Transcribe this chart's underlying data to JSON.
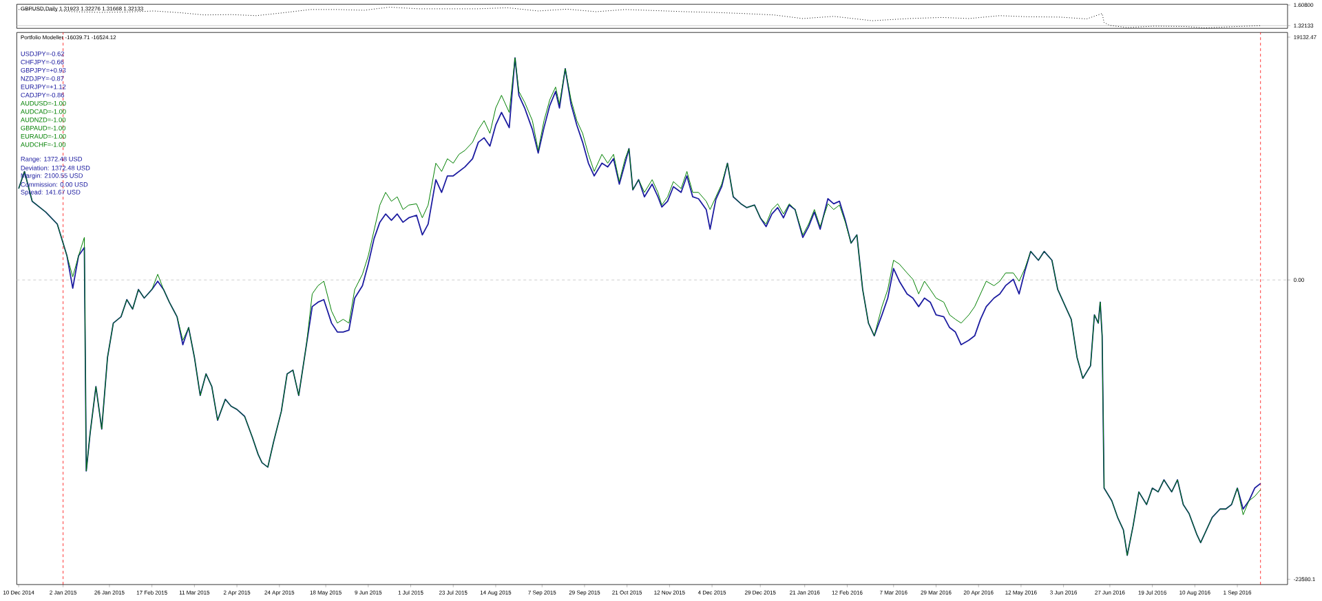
{
  "chart_data": [
    {
      "type": "line",
      "title": "GBPUSD,Daily  1.31923 1.32276 1.31668 1.32133",
      "xlim": [
        "2014-12-09",
        "2016-09-27"
      ],
      "ylim": [
        1.284,
        1.618
      ],
      "yticks": [
        {
          "value": 1.608,
          "label": "1.60800"
        },
        {
          "value": 1.32133,
          "label": "1.32133"
        }
      ],
      "tick_labels": "y",
      "line_style": "dotted",
      "x": [
        "2014-12-10",
        "2014-12-24",
        "2015-01-07",
        "2015-01-21",
        "2015-02-04",
        "2015-02-18",
        "2015-03-04",
        "2015-03-16",
        "2015-03-30",
        "2015-04-12",
        "2015-04-26",
        "2015-05-10",
        "2015-05-24",
        "2015-06-07",
        "2015-06-20",
        "2015-07-05",
        "2015-07-20",
        "2015-08-05",
        "2015-08-20",
        "2015-09-05",
        "2015-09-20",
        "2015-10-05",
        "2015-10-20",
        "2015-11-05",
        "2015-11-20",
        "2015-12-05",
        "2015-12-20",
        "2016-01-05",
        "2016-01-20",
        "2016-02-05",
        "2016-02-25",
        "2016-03-15",
        "2016-04-01",
        "2016-04-15",
        "2016-05-01",
        "2016-05-15",
        "2016-06-01",
        "2016-06-15",
        "2016-06-23",
        "2016-06-24",
        "2016-06-27",
        "2016-07-06",
        "2016-07-20",
        "2016-08-05",
        "2016-08-15",
        "2016-09-01",
        "2016-09-13"
      ],
      "series": [
        {
          "color": "#000000",
          "values": [
            1.545,
            1.535,
            1.515,
            1.505,
            1.51,
            1.525,
            1.5,
            1.47,
            1.475,
            1.46,
            1.5,
            1.545,
            1.545,
            1.535,
            1.578,
            1.555,
            1.555,
            1.555,
            1.57,
            1.525,
            1.55,
            1.515,
            1.545,
            1.53,
            1.515,
            1.505,
            1.49,
            1.47,
            1.42,
            1.45,
            1.39,
            1.42,
            1.435,
            1.42,
            1.46,
            1.445,
            1.44,
            1.415,
            1.49,
            1.365,
            1.325,
            1.295,
            1.315,
            1.31,
            1.29,
            1.31,
            1.32133
          ]
        }
      ],
      "ref_lines": [
        {
          "axis": "y",
          "value": 1.32133,
          "color": "#c0c0c0",
          "line_style": "solid"
        }
      ]
    },
    {
      "type": "line",
      "title": "Portfolio Modeller -16039.71 -16524.12",
      "xlim": [
        "2014-12-09",
        "2016-09-27"
      ],
      "ylim": [
        -24000,
        19500
      ],
      "yticks": [
        19132.47,
        {
          "value": 0,
          "label": "0.00"
        },
        -23580.1
      ],
      "xticks": [
        {
          "value": "2014-12-10",
          "label": "10 Dec 2014"
        },
        {
          "value": "2015-01-02",
          "label": "2 Jan 2015"
        },
        {
          "value": "2015-01-26",
          "label": "26 Jan 2015"
        },
        {
          "value": "2015-02-17",
          "label": "17 Feb 2015"
        },
        {
          "value": "2015-03-11",
          "label": "11 Mar 2015"
        },
        {
          "value": "2015-04-02",
          "label": "2 Apr 2015"
        },
        {
          "value": "2015-04-24",
          "label": "24 Apr 2015"
        },
        {
          "value": "2015-05-18",
          "label": "18 May 2015"
        },
        {
          "value": "2015-06-09",
          "label": "9 Jun 2015"
        },
        {
          "value": "2015-07-01",
          "label": "1 Jul 2015"
        },
        {
          "value": "2015-07-23",
          "label": "23 Jul 2015"
        },
        {
          "value": "2015-08-14",
          "label": "14 Aug 2015"
        },
        {
          "value": "2015-09-07",
          "label": "7 Sep 2015"
        },
        {
          "value": "2015-09-29",
          "label": "29 Sep 2015"
        },
        {
          "value": "2015-10-21",
          "label": "21 Oct 2015"
        },
        {
          "value": "2015-11-12",
          "label": "12 Nov 2015"
        },
        {
          "value": "2015-12-04",
          "label": "4 Dec 2015"
        },
        {
          "value": "2015-12-29",
          "label": "29 Dec 2015"
        },
        {
          "value": "2016-01-21",
          "label": "21 Jan 2016"
        },
        {
          "value": "2016-02-12",
          "label": "12 Feb 2016"
        },
        {
          "value": "2016-03-07",
          "label": "7 Mar 2016"
        },
        {
          "value": "2016-03-29",
          "label": "29 Mar 2016"
        },
        {
          "value": "2016-04-20",
          "label": "20 Apr 2016"
        },
        {
          "value": "2016-05-12",
          "label": "12 May 2016"
        },
        {
          "value": "2016-06-03",
          "label": "3 Jun 2016"
        },
        {
          "value": "2016-06-27",
          "label": "27 Jun 2016"
        },
        {
          "value": "2016-07-19",
          "label": "19 Jul 2016"
        },
        {
          "value": "2016-08-10",
          "label": "10 Aug 2016"
        },
        {
          "value": "2016-09-01",
          "label": "1 Sep 2016"
        }
      ],
      "annotations": [
        "USDJPY=-0.62",
        "CHFJPY=-0.66",
        "GBPJPY=+0.93",
        "NZDJPY=-0.87",
        "EURJPY=+1.12",
        "CADJPY=-0.86",
        "AUDUSD=-1.00",
        "AUDCAD=-1.00",
        "AUDNZD=-1.00",
        "GBPAUD=-1.00",
        "EURAUD=-1.00",
        "AUDCHF=-1.00",
        "Range: 1372.48 USD",
        "Deviation: 1372.48 USD",
        "Margin: 2100.55 USD",
        "Commission: 0.00 USD",
        "Spread: 141.67 USD"
      ],
      "ref_lines": [
        {
          "axis": "y",
          "value": 0,
          "color": "#c0c0c0",
          "line_style": "dashed"
        },
        {
          "axis": "x",
          "value": "2015-01-02",
          "color": "#ff0000",
          "line_style": "dashed"
        },
        {
          "axis": "x",
          "value": "2016-09-13",
          "color": "#ff0000",
          "line_style": "dashed"
        }
      ],
      "x": [
        "2014-12-10",
        "2014-12-13",
        "2014-12-17",
        "2014-12-24",
        "2014-12-30",
        "2015-01-04",
        "2015-01-07",
        "2015-01-10",
        "2015-01-13",
        "2015-01-14",
        "2015-01-16",
        "2015-01-19",
        "2015-01-22",
        "2015-01-25",
        "2015-01-28",
        "2015-02-01",
        "2015-02-04",
        "2015-02-07",
        "2015-02-10",
        "2015-02-13",
        "2015-02-17",
        "2015-02-20",
        "2015-02-23",
        "2015-02-26",
        "2015-03-02",
        "2015-03-05",
        "2015-03-08",
        "2015-03-11",
        "2015-03-14",
        "2015-03-17",
        "2015-03-20",
        "2015-03-23",
        "2015-03-27",
        "2015-03-30",
        "2015-04-02",
        "2015-04-06",
        "2015-04-10",
        "2015-04-13",
        "2015-04-15",
        "2015-04-18",
        "2015-04-21",
        "2015-04-25",
        "2015-04-28",
        "2015-05-01",
        "2015-05-04",
        "2015-05-08",
        "2015-05-11",
        "2015-05-14",
        "2015-05-17",
        "2015-05-21",
        "2015-05-24",
        "2015-05-27",
        "2015-05-30",
        "2015-06-02",
        "2015-06-06",
        "2015-06-09",
        "2015-06-12",
        "2015-06-15",
        "2015-06-18",
        "2015-06-21",
        "2015-06-24",
        "2015-06-27",
        "2015-06-30",
        "2015-07-04",
        "2015-07-07",
        "2015-07-10",
        "2015-07-14",
        "2015-07-17",
        "2015-07-20",
        "2015-07-23",
        "2015-07-26",
        "2015-07-29",
        "2015-08-02",
        "2015-08-05",
        "2015-08-08",
        "2015-08-11",
        "2015-08-14",
        "2015-08-17",
        "2015-08-21",
        "2015-08-24",
        "2015-08-26",
        "2015-08-29",
        "2015-09-02",
        "2015-09-05",
        "2015-09-08",
        "2015-09-11",
        "2015-09-14",
        "2015-09-16",
        "2015-09-19",
        "2015-09-22",
        "2015-09-25",
        "2015-09-28",
        "2015-10-01",
        "2015-10-04",
        "2015-10-08",
        "2015-10-11",
        "2015-10-14",
        "2015-10-17",
        "2015-10-20",
        "2015-10-22",
        "2015-10-24",
        "2015-10-27",
        "2015-10-30",
        "2015-11-03",
        "2015-11-06",
        "2015-11-08",
        "2015-11-11",
        "2015-11-14",
        "2015-11-18",
        "2015-11-21",
        "2015-11-24",
        "2015-11-27",
        "2015-12-01",
        "2015-12-03",
        "2015-12-06",
        "2015-12-09",
        "2015-12-12",
        "2015-12-15",
        "2015-12-19",
        "2015-12-22",
        "2015-12-26",
        "2015-12-29",
        "2016-01-01",
        "2016-01-04",
        "2016-01-07",
        "2016-01-10",
        "2016-01-13",
        "2016-01-16",
        "2016-01-20",
        "2016-01-23",
        "2016-01-26",
        "2016-01-29",
        "2016-02-02",
        "2016-02-05",
        "2016-02-08",
        "2016-02-11",
        "2016-02-14",
        "2016-02-17",
        "2016-02-20",
        "2016-02-23",
        "2016-02-26",
        "2016-03-01",
        "2016-03-04",
        "2016-03-07",
        "2016-03-10",
        "2016-03-14",
        "2016-03-17",
        "2016-03-20",
        "2016-03-23",
        "2016-03-26",
        "2016-03-29",
        "2016-04-02",
        "2016-04-05",
        "2016-04-08",
        "2016-04-11",
        "2016-04-15",
        "2016-04-18",
        "2016-04-21",
        "2016-04-24",
        "2016-04-28",
        "2016-05-01",
        "2016-05-04",
        "2016-05-08",
        "2016-05-11",
        "2016-05-14",
        "2016-05-17",
        "2016-05-21",
        "2016-05-24",
        "2016-05-28",
        "2016-05-31",
        "2016-06-04",
        "2016-06-07",
        "2016-06-10",
        "2016-06-13",
        "2016-06-17",
        "2016-06-19",
        "2016-06-21",
        "2016-06-22",
        "2016-06-23",
        "2016-06-24",
        "2016-06-28",
        "2016-07-01",
        "2016-07-04",
        "2016-07-06",
        "2016-07-09",
        "2016-07-12",
        "2016-07-16",
        "2016-07-19",
        "2016-07-22",
        "2016-07-25",
        "2016-07-29",
        "2016-08-01",
        "2016-08-04",
        "2016-08-07",
        "2016-08-11",
        "2016-08-13",
        "2016-08-16",
        "2016-08-19",
        "2016-08-23",
        "2016-08-26",
        "2016-08-29",
        "2016-09-01",
        "2016-09-04",
        "2016-09-07",
        "2016-09-10",
        "2016-09-13"
      ],
      "series": [
        {
          "color": "#1c1ca0",
          "values": [
            7200,
            8550,
            6200,
            5350,
            4400,
            1900,
            -650,
            1900,
            2550,
            -15050,
            -12070,
            -8400,
            -11750,
            -6100,
            -3400,
            -2900,
            -1550,
            -2300,
            -750,
            -1430,
            -750,
            -100,
            -750,
            -1750,
            -2900,
            -5100,
            -3750,
            -6100,
            -9100,
            -7400,
            -8400,
            -11050,
            -9400,
            -9950,
            -10200,
            -10750,
            -12400,
            -13750,
            -14400,
            -14750,
            -12750,
            -10350,
            -7400,
            -7100,
            -9100,
            -5100,
            -2100,
            -1750,
            -1550,
            -3400,
            -4100,
            -4100,
            -3950,
            -1430,
            -450,
            1250,
            3250,
            4550,
            5200,
            4700,
            5200,
            4550,
            4900,
            5100,
            3550,
            4400,
            7900,
            6900,
            8200,
            8200,
            8550,
            8900,
            9550,
            10850,
            11200,
            10550,
            12200,
            13200,
            12000,
            17500,
            14550,
            13550,
            11850,
            10000,
            12000,
            13750,
            14850,
            13550,
            16650,
            13850,
            12200,
            10850,
            9200,
            8200,
            9200,
            8900,
            9550,
            7550,
            9200,
            10350,
            7100,
            7900,
            6550,
            7550,
            6550,
            5750,
            6200,
            7350,
            6900,
            8200,
            6550,
            6400,
            5550,
            4000,
            6350,
            7350,
            9200,
            6550,
            6000,
            5700,
            5900,
            4900,
            4200,
            5200,
            5700,
            4900,
            5900,
            5550,
            3350,
            4200,
            5350,
            4000,
            6400,
            6000,
            6200,
            4700,
            2900,
            3550,
            -750,
            -3400,
            -4400,
            -2750,
            -1430,
            900,
            -100,
            -1100,
            -1430,
            -2100,
            -1430,
            -1750,
            -2750,
            -2900,
            -3750,
            -4100,
            -5100,
            -4750,
            -4400,
            -3100,
            -2100,
            -1430,
            -1100,
            -450,
            50,
            -1100,
            700,
            2250,
            1550,
            2250,
            1550,
            -750,
            -2100,
            -3100,
            -6100,
            -7750,
            -6750,
            -2750,
            -3400,
            -1750,
            -4400,
            -16400,
            -17400,
            -18700,
            -19700,
            -21700,
            -19400,
            -16700,
            -17700,
            -16400,
            -16700,
            -15750,
            -16700,
            -15750,
            -17700,
            -18400,
            -20050,
            -20700,
            -19700,
            -18700,
            -18050,
            -18050,
            -17700,
            -16400,
            -18050,
            -17400,
            -16400,
            -16039.71
          ]
        },
        {
          "color": "#008000",
          "values": [
            7200,
            8550,
            6200,
            5350,
            4400,
            1900,
            250,
            1900,
            3350,
            -15050,
            -12070,
            -8400,
            -11750,
            -6100,
            -3400,
            -2900,
            -1550,
            -2300,
            -750,
            -1430,
            -750,
            450,
            -750,
            -1750,
            -2900,
            -4750,
            -3750,
            -6100,
            -9100,
            -7400,
            -8400,
            -11050,
            -9400,
            -9950,
            -10200,
            -10750,
            -12400,
            -13750,
            -14400,
            -14750,
            -12750,
            -10350,
            -7400,
            -7100,
            -9100,
            -5100,
            -1100,
            -450,
            -100,
            -2450,
            -3400,
            -3100,
            -3400,
            -750,
            450,
            1900,
            3900,
            5900,
            6900,
            6200,
            6550,
            5550,
            5900,
            6000,
            4900,
            5900,
            9200,
            8550,
            9550,
            9200,
            9900,
            10200,
            10850,
            11850,
            12550,
            11550,
            13550,
            14550,
            13200,
            17500,
            14850,
            14000,
            12550,
            10200,
            12550,
            14200,
            15200,
            13850,
            16650,
            14200,
            12550,
            11550,
            9900,
            8550,
            9900,
            9200,
            9900,
            7750,
            9550,
            10350,
            7100,
            7900,
            6900,
            7900,
            6900,
            5900,
            6550,
            7750,
            7200,
            8550,
            6900,
            6900,
            6200,
            5550,
            6550,
            7550,
            9200,
            6550,
            6000,
            5700,
            5900,
            4900,
            4400,
            5550,
            6000,
            5200,
            6000,
            5550,
            3550,
            4400,
            5550,
            4200,
            6000,
            5550,
            5900,
            4550,
            2900,
            3550,
            -750,
            -3400,
            -4400,
            -2100,
            -750,
            1550,
            1250,
            550,
            50,
            -1100,
            -100,
            -750,
            -1430,
            -1750,
            -2750,
            -3100,
            -3400,
            -2750,
            -2100,
            -1100,
            -100,
            -450,
            -100,
            550,
            550,
            -100,
            900,
            2250,
            1550,
            2250,
            1550,
            -750,
            -2100,
            -3100,
            -6100,
            -7750,
            -6750,
            -2750,
            -3400,
            -1750,
            -4400,
            -16400,
            -17400,
            -18700,
            -19700,
            -21700,
            -19400,
            -16700,
            -17700,
            -16400,
            -16700,
            -15750,
            -16700,
            -15750,
            -17700,
            -18400,
            -20050,
            -20700,
            -19700,
            -18700,
            -18050,
            -18050,
            -17700,
            -16400,
            -18500,
            -17400,
            -17050,
            -16524.12
          ]
        }
      ]
    }
  ]
}
